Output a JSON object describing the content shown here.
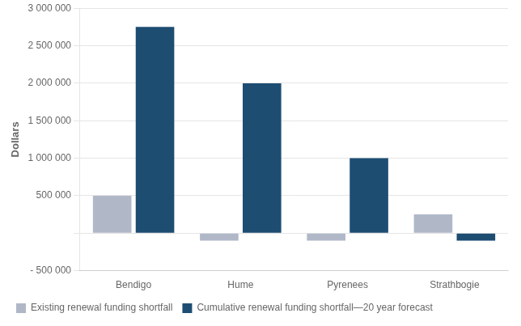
{
  "chart_data": {
    "type": "bar",
    "ylabel": "Dollars",
    "categories": [
      "Bendigo",
      "Hume",
      "Pyrenees",
      "Strathbogie"
    ],
    "series": [
      {
        "name": "Existing renewal funding shortfall",
        "color": "#b0b8c8",
        "values": [
          500000,
          -100000,
          -100000,
          250000
        ]
      },
      {
        "name": "Cumulative renewal funding shortfall—20 year forecast",
        "color": "#1e4d72",
        "values": [
          2750000,
          2000000,
          1000000,
          -100000
        ]
      }
    ],
    "ylim": [
      -500000,
      3000000
    ],
    "yticks": [
      {
        "value": -500000,
        "label": "- 500 000"
      },
      {
        "value": 0,
        "label": null
      },
      {
        "value": 500000,
        "label": "500 000"
      },
      {
        "value": 1000000,
        "label": "1 000 000"
      },
      {
        "value": 1500000,
        "label": "1 500 000"
      },
      {
        "value": 2000000,
        "label": "2 000 000"
      },
      {
        "value": 2500000,
        "label": "2 500 000"
      },
      {
        "value": 3000000,
        "label": "3 000 000"
      }
    ],
    "grid": true,
    "legend": "bottom"
  }
}
